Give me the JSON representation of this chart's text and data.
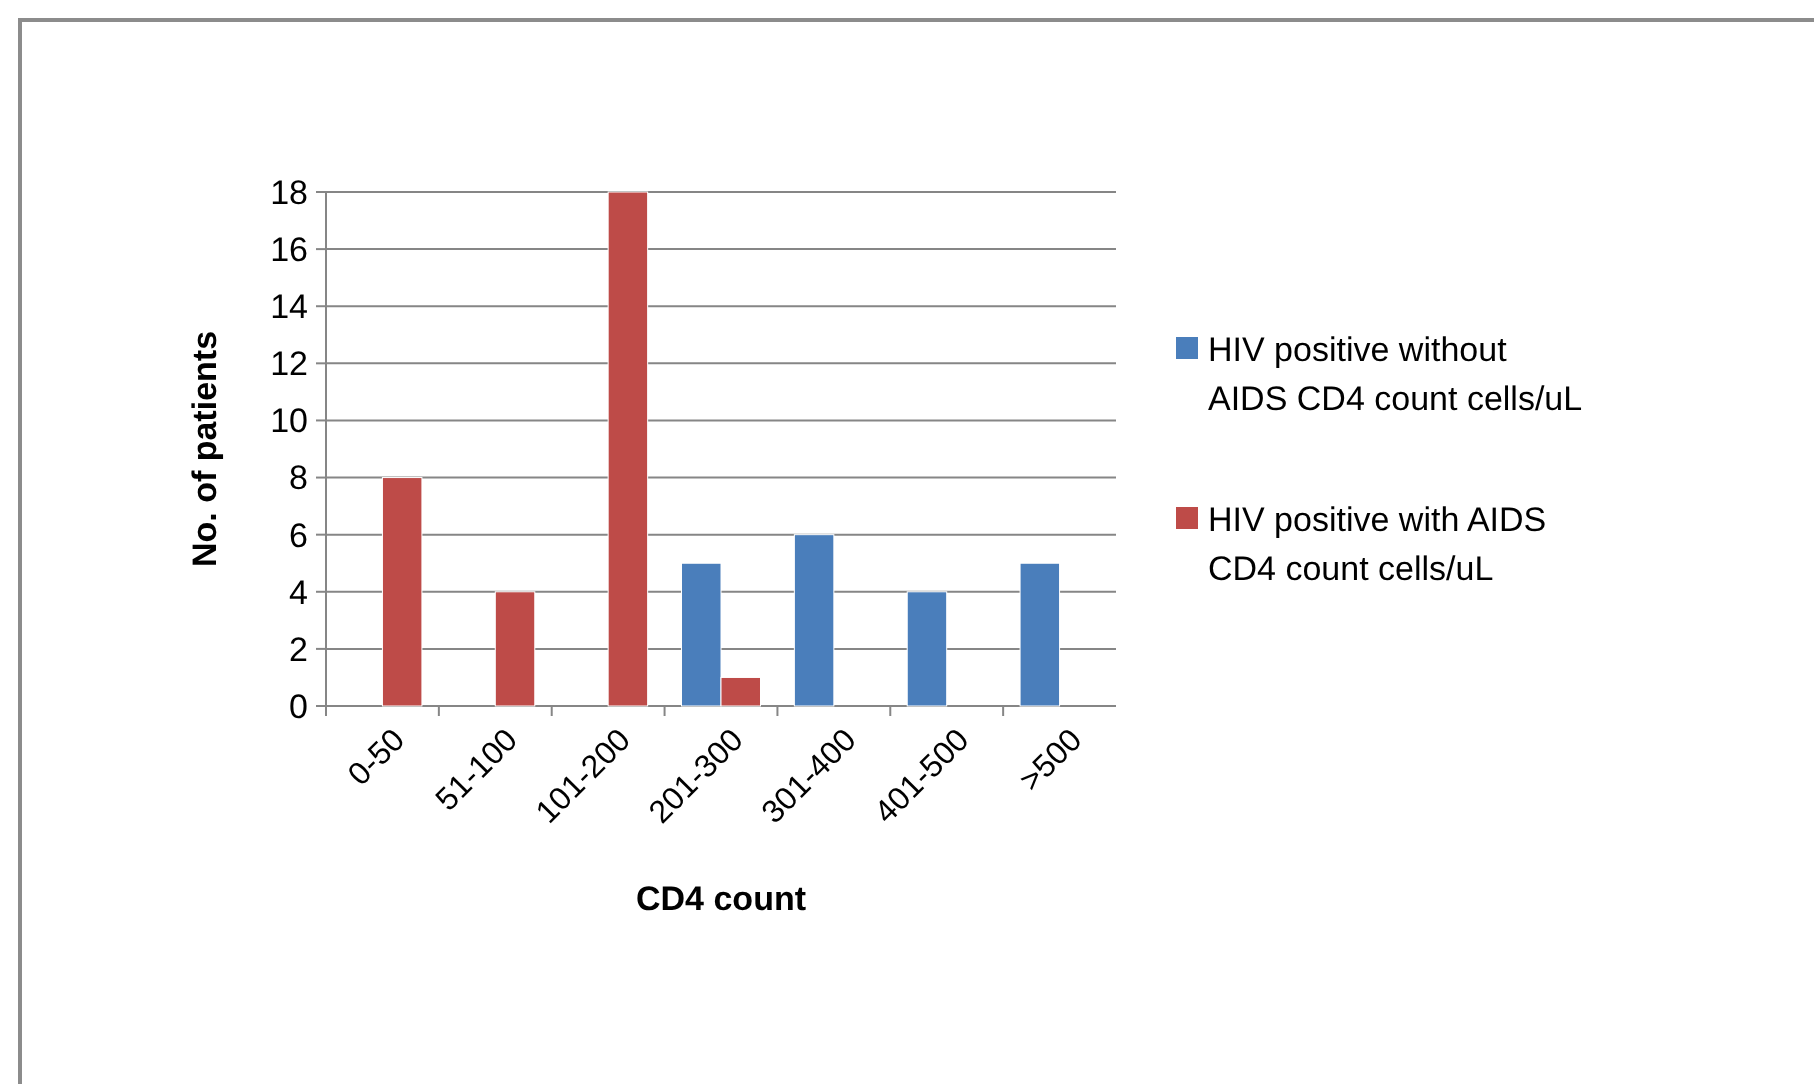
{
  "chart_data": {
    "type": "bar",
    "xlabel": "CD4 count",
    "ylabel": "No. of patients",
    "categories": [
      "0-50",
      "51-100",
      "101-200",
      "201-300",
      "301-400",
      "401-500",
      ">500"
    ],
    "series": [
      {
        "name": "HIV positive without AIDS CD4 count cells/uL",
        "color": "#4a7ebb",
        "values": [
          null,
          null,
          null,
          5,
          6,
          4,
          5
        ]
      },
      {
        "name": "HIV positive with AIDS CD4 count cells/uL",
        "color": "#be4b48",
        "values": [
          8,
          4,
          18,
          1,
          null,
          null,
          null
        ]
      }
    ],
    "ylim": [
      0,
      18
    ],
    "yticks": [
      0,
      2,
      4,
      6,
      8,
      10,
      12,
      14,
      16,
      18
    ],
    "grid": "y",
    "legend": "right"
  }
}
